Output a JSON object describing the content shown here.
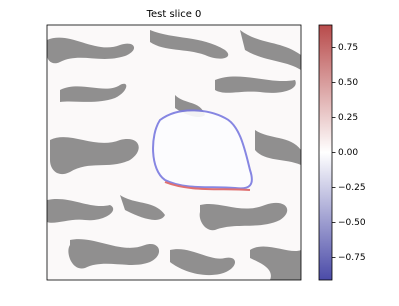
{
  "chart_data": {
    "type": "image",
    "title": "Test slice 0",
    "colorbar": {
      "clim": [
        -0.91,
        0.91
      ],
      "ticks": [
        {
          "value": -0.75,
          "label": "−0.75"
        },
        {
          "value": -0.5,
          "label": "−0.50"
        },
        {
          "value": -0.25,
          "label": "−0.25"
        },
        {
          "value": 0,
          "label": "0.00"
        },
        0.25,
        {
          "value": 0.5,
          "label": "0.50"
        },
        0.75
      ],
      "colors": [
        "#4b4ba8",
        "#ffffff",
        "#b84b4b"
      ]
    }
  }
}
